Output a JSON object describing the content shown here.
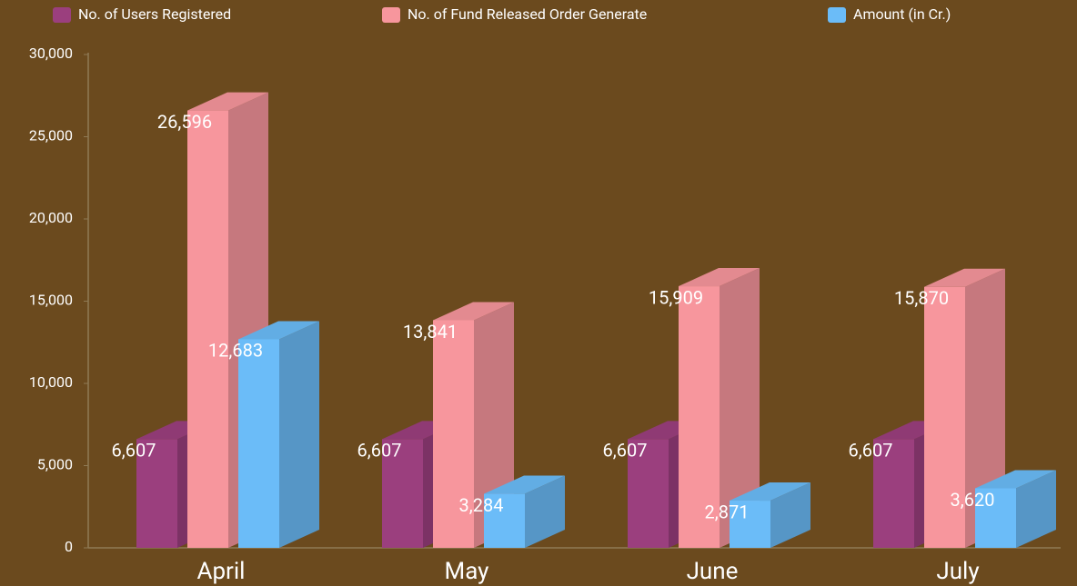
{
  "chart_data": {
    "type": "bar3d",
    "categories": [
      "April",
      "May",
      "June",
      "July"
    ],
    "series": [
      {
        "name": "No. of Users Registered",
        "color": "#9b3f7e",
        "values": [
          6607,
          6607,
          6607,
          6607
        ],
        "value_labels": [
          "6,607",
          "6,607",
          "6,607",
          "6,607"
        ]
      },
      {
        "name": "No. of Fund Released Order Generate",
        "color": "#f7969d",
        "values": [
          26596,
          13841,
          15909,
          15870
        ],
        "value_labels": [
          "26,596",
          "13,841",
          "15,909",
          "15,870"
        ]
      },
      {
        "name": "Amount (in Cr.)",
        "color": "#6bbcf8",
        "values": [
          12683,
          3284,
          2871,
          3620
        ],
        "value_labels": [
          "12,683",
          "3,284",
          "2,871",
          "3,620"
        ]
      }
    ],
    "ylim": [
      0,
      30000
    ],
    "yticks": [
      0,
      {
        "value": 5000,
        "label": "5,000"
      },
      {
        "value": 10000,
        "label": "10,000"
      },
      {
        "value": 15000,
        "label": "15,000"
      },
      {
        "value": 20000,
        "label": "20,000"
      },
      {
        "value": 25000,
        "label": "25,000"
      },
      {
        "value": 30000,
        "label": "30,000"
      }
    ]
  }
}
